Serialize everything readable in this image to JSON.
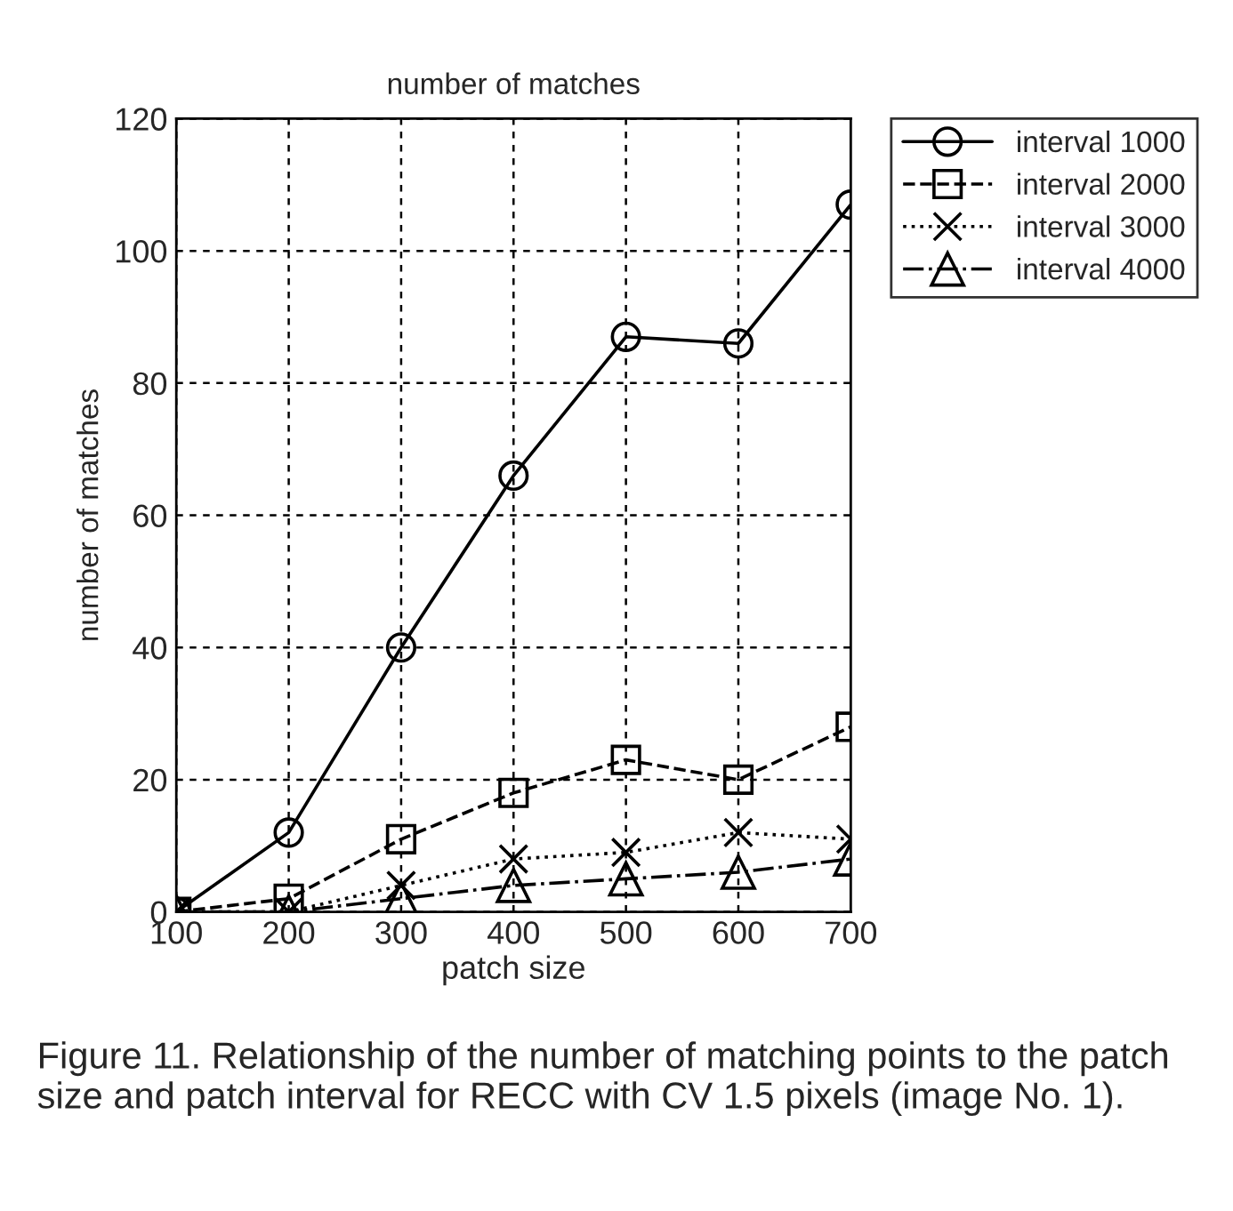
{
  "chart_data": {
    "type": "line",
    "title": "number of matches",
    "xlabel": "patch size",
    "ylabel": "number of matches",
    "x": [
      100,
      200,
      300,
      400,
      500,
      600,
      700
    ],
    "series": [
      {
        "name": "interval 1000",
        "color": "#000000",
        "marker": "circle",
        "line_style": "solid",
        "values": [
          0,
          12,
          40,
          66,
          87,
          86,
          107
        ]
      },
      {
        "name": "interval 2000",
        "color": "#000000",
        "marker": "square",
        "line_style": "dashed",
        "values": [
          0,
          2,
          11,
          18,
          23,
          20,
          28
        ]
      },
      {
        "name": "interval 3000",
        "color": "#000000",
        "marker": "cross",
        "line_style": "dotted",
        "values": [
          0,
          0,
          4,
          8,
          9,
          12,
          11
        ]
      },
      {
        "name": "interval 4000",
        "color": "#000000",
        "marker": "triangle",
        "line_style": "dashdot",
        "values": [
          0,
          0,
          2,
          4,
          5,
          6,
          8
        ]
      }
    ],
    "xlim": [
      100,
      700
    ],
    "xticks": [
      100,
      200,
      300,
      400,
      500,
      600,
      700
    ],
    "ylim": [
      0,
      120
    ],
    "yticks": [
      0,
      20,
      40,
      60,
      80,
      100,
      120
    ],
    "grid": true,
    "legend": "top right",
    "annotations": [
      "Figure 11. Relationship of the number of matching points to the patch size and patch interval for RECC with CV 1.5 pixels (image No. 1)."
    ]
  }
}
